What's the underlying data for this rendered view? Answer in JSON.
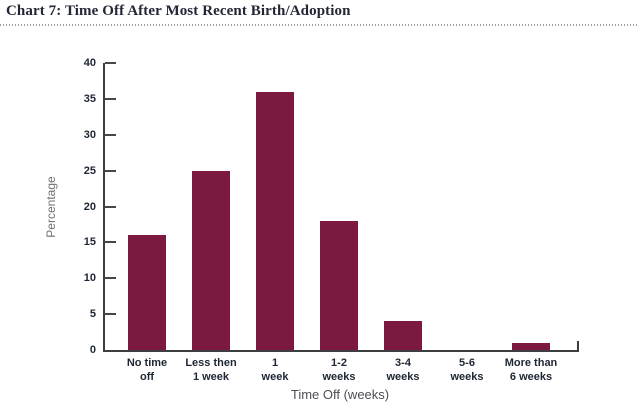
{
  "header": {
    "title": "Chart 7: Time Off After Most Recent Birth/Adoption"
  },
  "chart_data": {
    "type": "bar",
    "title": "Chart 7: Time Off After Most Recent Birth/Adoption",
    "categories": [
      "No time\noff",
      "Less then\n1 week",
      "1\nweek",
      "1-2\nweeks",
      "3-4\nweeks",
      "5-6\nweeks",
      "More than\n6 weeks"
    ],
    "values": [
      16,
      25,
      36,
      18,
      4,
      0,
      1
    ],
    "xlabel": "Time Off (weeks)",
    "ylabel": "Percentage",
    "ylim": [
      0,
      40
    ],
    "yticks": [
      0,
      5,
      10,
      15,
      20,
      25,
      30,
      35,
      40
    ],
    "grid": false,
    "legend_position": "none",
    "bar_color": "#7b1941"
  },
  "colors": {
    "bar": "#7b1941",
    "axis": "#3d3e42",
    "tick_label": "#1e2634",
    "axis_title": "#4d4e56",
    "title_text": "#232735",
    "background": "#ffffff"
  }
}
